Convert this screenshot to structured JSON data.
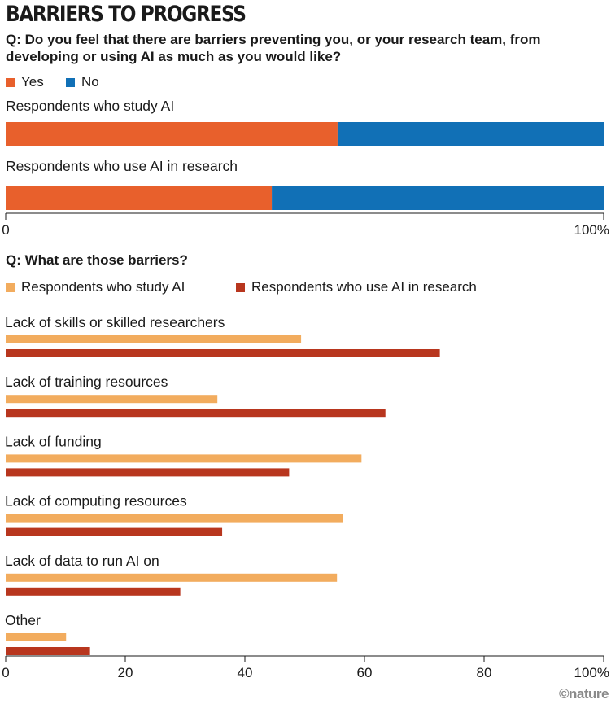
{
  "title": "BARRIERS TO PROGRESS",
  "credit": "©nature",
  "colors": {
    "yes": "#E8602C",
    "no": "#1170B6",
    "study_ai": "#F2AC5E",
    "use_ai": "#B8361E",
    "axis": "#1a1a1a"
  },
  "chart_data": [
    {
      "type": "bar",
      "orientation": "horizontal",
      "stacked": true,
      "question": "Q: Do you feel that there are barriers preventing you, or your research team, from developing or using AI as much as you would like?",
      "legend": [
        "Yes",
        "No"
      ],
      "legend_position": "top-left",
      "categories": [
        "Respondents who study AI",
        "Respondents who use AI in research"
      ],
      "series": [
        {
          "name": "Yes",
          "values": [
            55.5,
            44.5
          ]
        },
        {
          "name": "No",
          "values": [
            44.5,
            55.5
          ]
        }
      ],
      "xlim": [
        0,
        100
      ],
      "tick_labels": [
        "0",
        "100%"
      ],
      "grid": false
    },
    {
      "type": "bar",
      "orientation": "horizontal",
      "question": "Q: What are those barriers?",
      "legend": [
        "Respondents who study AI",
        "Respondents who use AI in research"
      ],
      "legend_position": "top-left",
      "categories": [
        "Lack of skills or skilled researchers",
        "Lack of training resources",
        "Lack of funding",
        "Lack of computing resources",
        "Lack of data to run AI on",
        "Other"
      ],
      "series": [
        {
          "name": "Respondents who study AI",
          "values": [
            49.4,
            35.4,
            59.5,
            56.4,
            55.4,
            10.1
          ]
        },
        {
          "name": "Respondents who use AI in research",
          "values": [
            72.6,
            63.5,
            47.4,
            36.2,
            29.2,
            14.1
          ]
        }
      ],
      "xlim": [
        0,
        100
      ],
      "ticks": [
        0,
        20,
        40,
        60,
        80,
        100
      ],
      "tick_labels": [
        "0",
        "20",
        "40",
        "60",
        "80",
        "100%"
      ],
      "grid": false
    }
  ]
}
